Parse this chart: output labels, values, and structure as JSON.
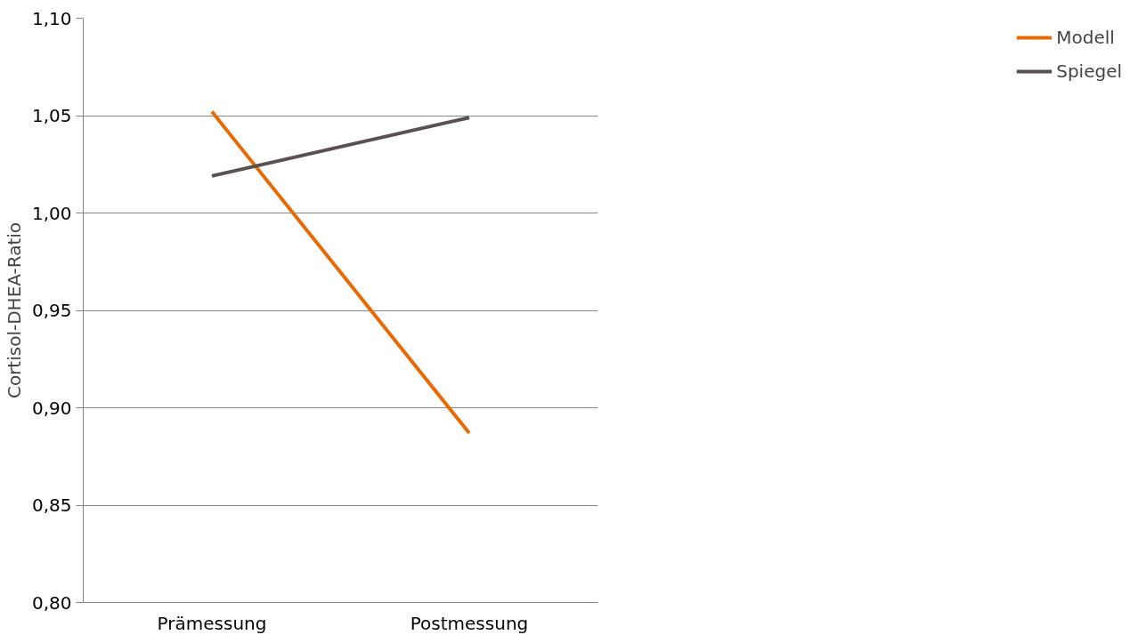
{
  "chart_data": {
    "type": "line",
    "ylabel": "Cortisol-DHEA-Ratio",
    "categories": [
      "Prämessung",
      "Postmessung"
    ],
    "series": [
      {
        "name": "Modell",
        "color": "#e36c09",
        "values": [
          1.052,
          0.887
        ]
      },
      {
        "name": "Spiegel",
        "color": "#595050",
        "values": [
          1.019,
          1.049
        ]
      }
    ],
    "ylim": [
      0.8,
      1.1
    ],
    "yticks": [
      {
        "value": 0.8,
        "label": "0,80"
      },
      {
        "value": 0.85,
        "label": "0,85"
      },
      {
        "value": 0.9,
        "label": "0,90"
      },
      {
        "value": 0.95,
        "label": "0,95"
      },
      {
        "value": 1.0,
        "label": "1,00"
      },
      {
        "value": 1.05,
        "label": "1,05"
      },
      {
        "value": 1.1,
        "label": "1,10"
      }
    ],
    "grid": "y",
    "legend": "right",
    "marker": "none",
    "line_style": "solid"
  }
}
